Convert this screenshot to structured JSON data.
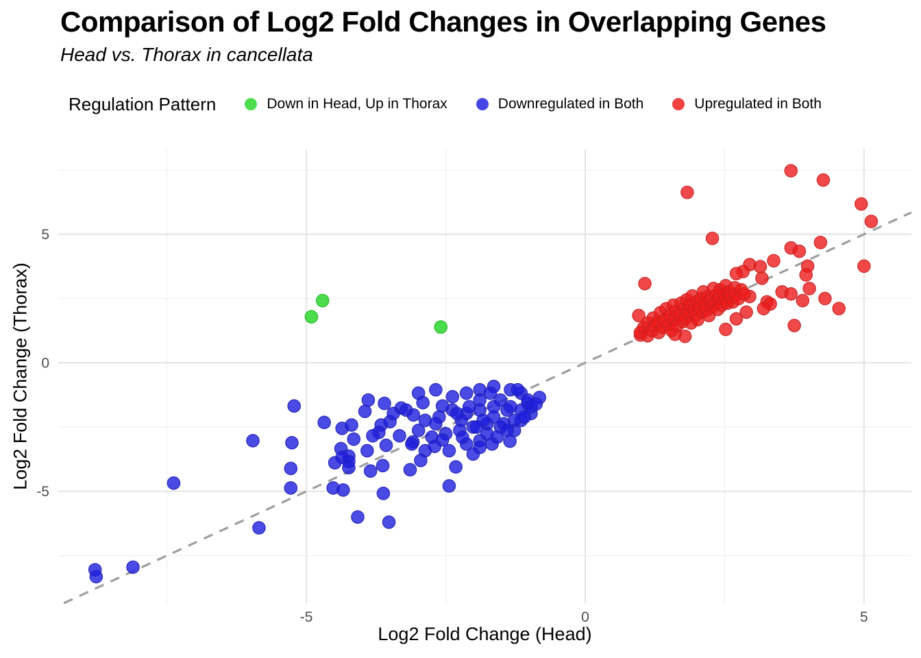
{
  "title": "Comparison of Log2 Fold Changes in Overlapping Genes",
  "subtitle": "Head vs. Thorax in cancellata",
  "legend": {
    "title": "Regulation Pattern",
    "items": [
      {
        "label": "Down in Head, Up in Thorax",
        "color": "#4ddd4d"
      },
      {
        "label": "Downregulated in Both",
        "color": "#4646e6"
      },
      {
        "label": "Upregulated in Both",
        "color": "#f14141"
      }
    ]
  },
  "axes": {
    "x_label": "Log2 Fold Change (Head)",
    "y_label": "Log2 Fold Change (Thorax)"
  },
  "colors": {
    "background": "#ffffff",
    "major_gridline": "#e4e4e4",
    "minor_gridline": "#f0f0f0",
    "tick_label": "#4d4d4d",
    "reference_line": "#9e9e9e"
  },
  "chart_data": {
    "type": "scatter",
    "title": "Comparison of Log2 Fold Changes in Overlapping Genes",
    "subtitle": "Head vs. Thorax in cancellata",
    "xlabel": "Log2 Fold Change (Head)",
    "ylabel": "Log2 Fold Change (Thorax)",
    "xlim": [
      -9.45,
      5.85
    ],
    "ylim": [
      -9.35,
      8.3
    ],
    "x_ticks": [
      -5,
      0,
      5
    ],
    "y_ticks": [
      -5,
      0,
      5
    ],
    "x_minor_ticks": [
      -7.5,
      -2.5,
      2.5
    ],
    "y_minor_ticks": [
      -7.5,
      -2.5,
      2.5,
      7.5
    ],
    "grid": true,
    "legend_position": "top",
    "reference_line": {
      "type": "identity y=x",
      "style": "dashed"
    },
    "marker_radius_px": 9.2,
    "series": [
      {
        "name": "Down in Head, Up in Thorax",
        "fill": "#1ed41e",
        "stroke": "#23b423",
        "opacity": 0.8,
        "points": [
          [
            -4.71,
            2.42
          ],
          [
            -4.91,
            1.79
          ],
          [
            -2.59,
            1.39
          ]
        ]
      },
      {
        "name": "Downregulated in Both",
        "fill": "#1d1ddd",
        "stroke": "#2222b4",
        "opacity": 0.8,
        "points": [
          [
            -8.79,
            -8.05
          ],
          [
            -8.77,
            -8.32
          ],
          [
            -8.11,
            -7.95
          ],
          [
            -7.38,
            -4.68
          ],
          [
            -5.96,
            -3.03
          ],
          [
            -5.85,
            -6.42
          ],
          [
            -5.22,
            -1.68
          ],
          [
            -5.26,
            -3.11
          ],
          [
            -5.28,
            -4.11
          ],
          [
            -5.28,
            -4.87
          ],
          [
            -4.68,
            -2.32
          ],
          [
            -4.36,
            -2.55
          ],
          [
            -4.19,
            -2.42
          ],
          [
            -3.89,
            -1.45
          ],
          [
            -3.6,
            -1.58
          ],
          [
            -3.3,
            -1.76
          ],
          [
            -3.21,
            -1.84
          ],
          [
            -3.08,
            -2.03
          ],
          [
            -3.66,
            -2.42
          ],
          [
            -3.5,
            -2.29
          ],
          [
            -3.7,
            -2.71
          ],
          [
            -3.81,
            -2.84
          ],
          [
            -3.33,
            -2.84
          ],
          [
            -3.09,
            -3.08
          ],
          [
            -4.15,
            -2.97
          ],
          [
            -4.38,
            -3.34
          ],
          [
            -4.24,
            -3.63
          ],
          [
            -3.91,
            -3.42
          ],
          [
            -4.24,
            -3.84
          ],
          [
            -3.57,
            -3.21
          ],
          [
            -4.24,
            -4.08
          ],
          [
            -3.85,
            -4.21
          ],
          [
            -4.36,
            -3.68
          ],
          [
            -4.49,
            -3.89
          ],
          [
            -4.52,
            -4.87
          ],
          [
            -4.34,
            -4.95
          ],
          [
            -3.63,
            -4.0
          ],
          [
            -3.14,
            -4.16
          ],
          [
            -3.62,
            -5.08
          ],
          [
            -2.44,
            -4.79
          ],
          [
            -4.08,
            -6.0
          ],
          [
            -3.52,
            -6.2
          ],
          [
            -2.68,
            -1.05
          ],
          [
            -2.99,
            -1.18
          ],
          [
            -2.38,
            -1.32
          ],
          [
            -2.13,
            -1.18
          ],
          [
            -1.89,
            -1.05
          ],
          [
            -1.64,
            -0.92
          ],
          [
            -1.34,
            -1.05
          ],
          [
            -1.15,
            -1.18
          ],
          [
            -1.03,
            -1.58
          ],
          [
            -0.97,
            -1.97
          ],
          [
            -1.15,
            -2.24
          ],
          [
            -1.4,
            -1.84
          ],
          [
            -1.64,
            -1.71
          ],
          [
            -1.89,
            -1.84
          ],
          [
            -2.13,
            -1.97
          ],
          [
            -2.38,
            -1.84
          ],
          [
            -2.62,
            -2.11
          ],
          [
            -2.87,
            -2.24
          ],
          [
            -2.99,
            -2.63
          ],
          [
            -2.75,
            -2.89
          ],
          [
            -2.5,
            -2.76
          ],
          [
            -2.25,
            -2.63
          ],
          [
            -2.01,
            -2.5
          ],
          [
            -1.76,
            -2.37
          ],
          [
            -1.52,
            -2.5
          ],
          [
            -1.27,
            -2.63
          ],
          [
            -1.89,
            -3.03
          ],
          [
            -2.13,
            -3.16
          ],
          [
            -2.44,
            -3.42
          ],
          [
            -2.32,
            -4.05
          ],
          [
            -2.87,
            -3.42
          ],
          [
            -3.11,
            -3.16
          ],
          [
            -1.21,
            -1.05
          ],
          [
            -1.7,
            -1.18
          ],
          [
            -1.89,
            -1.45
          ],
          [
            -1.52,
            -1.45
          ],
          [
            -1.34,
            -1.71
          ],
          [
            -1.15,
            -1.84
          ],
          [
            -1.03,
            -1.45
          ],
          [
            -0.97,
            -1.71
          ],
          [
            -1.09,
            -2.11
          ],
          [
            -1.27,
            -2.24
          ],
          [
            -1.46,
            -2.37
          ],
          [
            -1.64,
            -2.11
          ],
          [
            -1.83,
            -2.24
          ],
          [
            -1.95,
            -2.5
          ],
          [
            -1.76,
            -2.76
          ],
          [
            -1.58,
            -2.89
          ],
          [
            -1.4,
            -2.63
          ],
          [
            -1.67,
            -3.16
          ],
          [
            -1.89,
            -3.29
          ],
          [
            -2.01,
            -3.55
          ],
          [
            -3.95,
            -1.89
          ],
          [
            -3.44,
            -1.97
          ],
          [
            -2.91,
            -1.55
          ],
          [
            -2.56,
            -1.68
          ],
          [
            -2.68,
            -2.37
          ],
          [
            -2.22,
            -2.24
          ],
          [
            -2.08,
            -1.71
          ],
          [
            -2.3,
            -1.97
          ],
          [
            -2.56,
            -3.0
          ],
          [
            -2.7,
            -3.25
          ],
          [
            -2.95,
            -3.8
          ],
          [
            -2.2,
            -2.9
          ],
          [
            -1.35,
            -3.05
          ],
          [
            -0.82,
            -1.35
          ],
          [
            -0.88,
            -1.6
          ]
        ]
      },
      {
        "name": "Upregulated in Both",
        "fill": "#ee1c1c",
        "stroke": "#c42222",
        "opacity": 0.8,
        "points": [
          [
            1.83,
            6.63
          ],
          [
            3.69,
            7.47
          ],
          [
            4.27,
            7.11
          ],
          [
            4.95,
            6.18
          ],
          [
            5.13,
            5.5
          ],
          [
            2.28,
            4.84
          ],
          [
            5.0,
            3.76
          ],
          [
            3.69,
            4.47
          ],
          [
            3.84,
            4.34
          ],
          [
            4.22,
            4.68
          ],
          [
            3.38,
            3.97
          ],
          [
            2.95,
            3.82
          ],
          [
            3.14,
            3.74
          ],
          [
            2.83,
            3.55
          ],
          [
            2.71,
            3.47
          ],
          [
            3.99,
            3.76
          ],
          [
            3.96,
            3.42
          ],
          [
            3.17,
            3.29
          ],
          [
            4.02,
            2.89
          ],
          [
            3.53,
            2.76
          ],
          [
            3.69,
            2.68
          ],
          [
            2.95,
            2.58
          ],
          [
            3.26,
            2.37
          ],
          [
            3.32,
            2.29
          ],
          [
            3.9,
            2.42
          ],
          [
            4.3,
            2.5
          ],
          [
            4.55,
            2.11
          ],
          [
            2.89,
            1.97
          ],
          [
            3.2,
            2.11
          ],
          [
            3.75,
            1.45
          ],
          [
            1.07,
            3.08
          ],
          [
            2.52,
            1.3
          ],
          [
            2.71,
            1.71
          ],
          [
            1.79,
            1.03
          ],
          [
            0.99,
            1.08
          ],
          [
            0.96,
            1.84
          ],
          [
            1.61,
            1.11
          ],
          [
            0.99,
            1.18
          ],
          [
            1.05,
            1.37
          ],
          [
            1.12,
            1.05
          ],
          [
            1.12,
            1.55
          ],
          [
            1.2,
            1.25
          ],
          [
            1.22,
            1.74
          ],
          [
            1.25,
            1.45
          ],
          [
            1.3,
            1.6
          ],
          [
            1.32,
            1.18
          ],
          [
            1.35,
            1.95
          ],
          [
            1.4,
            1.38
          ],
          [
            1.42,
            1.66
          ],
          [
            1.45,
            2.1
          ],
          [
            1.5,
            1.5
          ],
          [
            1.52,
            1.84
          ],
          [
            1.55,
            1.26
          ],
          [
            1.58,
            2.24
          ],
          [
            1.6,
            1.7
          ],
          [
            1.62,
            2.0
          ],
          [
            1.65,
            1.45
          ],
          [
            1.7,
            1.87
          ],
          [
            1.72,
            2.32
          ],
          [
            1.75,
            1.6
          ],
          [
            1.78,
            2.13
          ],
          [
            1.8,
            1.74
          ],
          [
            1.82,
            2.45
          ],
          [
            1.85,
            1.97
          ],
          [
            1.88,
            2.24
          ],
          [
            1.9,
            1.55
          ],
          [
            1.92,
            2.6
          ],
          [
            1.95,
            2.08
          ],
          [
            1.98,
            1.84
          ],
          [
            2.0,
            2.37
          ],
          [
            2.02,
            1.68
          ],
          [
            2.05,
            2.18
          ],
          [
            2.08,
            2.5
          ],
          [
            2.1,
            1.97
          ],
          [
            2.12,
            2.76
          ],
          [
            2.15,
            2.29
          ],
          [
            2.18,
            2.05
          ],
          [
            2.2,
            2.58
          ],
          [
            2.22,
            1.84
          ],
          [
            2.25,
            2.42
          ],
          [
            2.28,
            2.18
          ],
          [
            2.3,
            2.89
          ],
          [
            2.32,
            2.32
          ],
          [
            2.35,
            2.63
          ],
          [
            2.38,
            2.08
          ],
          [
            2.4,
            2.5
          ],
          [
            2.42,
            2.84
          ],
          [
            2.45,
            2.24
          ],
          [
            2.48,
            2.68
          ],
          [
            2.5,
            2.45
          ],
          [
            2.52,
            3.0
          ],
          [
            2.55,
            2.32
          ],
          [
            2.58,
            2.76
          ],
          [
            2.6,
            2.55
          ],
          [
            2.65,
            2.37
          ],
          [
            2.68,
            2.92
          ],
          [
            2.7,
            2.63
          ],
          [
            2.75,
            2.5
          ],
          [
            2.8,
            2.84
          ],
          [
            2.85,
            2.68
          ]
        ]
      }
    ]
  }
}
